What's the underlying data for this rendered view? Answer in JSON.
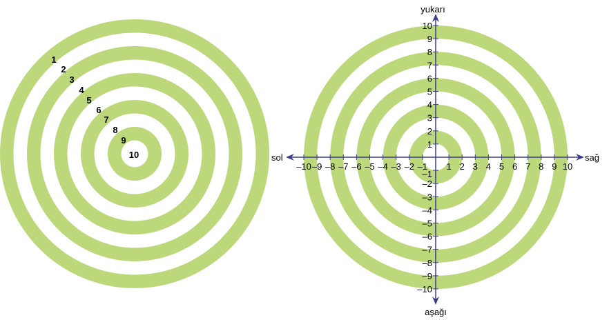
{
  "colors": {
    "ring": "#bcd87a",
    "axis": "#3c3c8c",
    "background": "#ffffff"
  },
  "left_target": {
    "ring_labels": [
      "1",
      "2",
      "3",
      "4",
      "5",
      "6",
      "7",
      "8",
      "9",
      "10"
    ]
  },
  "right_target": {
    "axis_labels": {
      "up": "yukarı",
      "down": "aşağı",
      "left": "sol",
      "right": "sağ"
    },
    "x_ticks": [
      "–10",
      "–9",
      "–8",
      "–7",
      "–6",
      "–5",
      "–4",
      "–3",
      "–2",
      "–1",
      "1",
      "2",
      "3",
      "4",
      "5",
      "6",
      "7",
      "8",
      "9",
      "10"
    ],
    "y_ticks": [
      "10",
      "9",
      "8",
      "7",
      "6",
      "5",
      "4",
      "3",
      "2",
      "1",
      "–1",
      "–2",
      "–3",
      "–4",
      "–5",
      "–6",
      "–7",
      "–8",
      "–9",
      "–10"
    ],
    "green_bands": [
      [
        1,
        2
      ],
      [
        3,
        4
      ],
      [
        5,
        6
      ],
      [
        7,
        8
      ],
      [
        9,
        10
      ]
    ]
  }
}
